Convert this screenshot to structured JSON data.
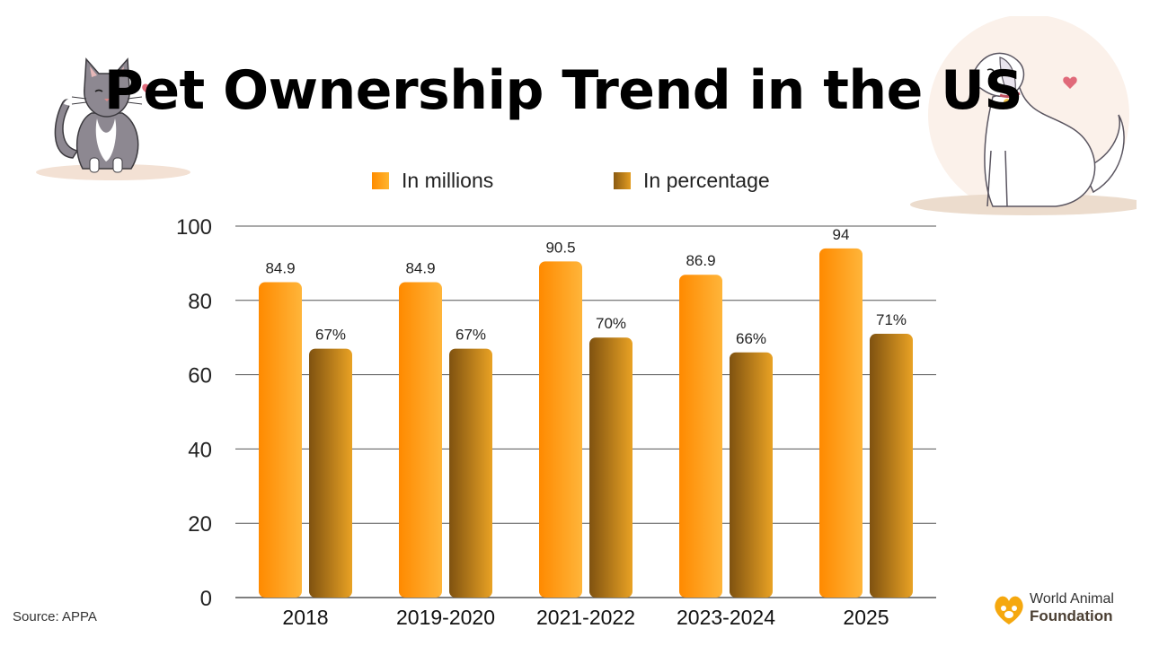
{
  "title": "Pet Ownership Trend in the US",
  "source": "Source: APPA",
  "brand": {
    "line1": "World Animal",
    "line2": "Foundation"
  },
  "colors": {
    "millions": "#ffa01c",
    "percentage": "#b87816",
    "grid": "#555555"
  },
  "chart_data": {
    "type": "bar",
    "title": "Pet Ownership Trend in the US",
    "categories": [
      "2018",
      "2019-2020",
      "2021-2022",
      "2023-2024",
      "2025"
    ],
    "series": [
      {
        "name": "In millions",
        "values": [
          84.9,
          84.9,
          90.5,
          86.9,
          94
        ],
        "labels": [
          "84.9",
          "84.9",
          "90.5",
          "86.9",
          "94"
        ]
      },
      {
        "name": "In percentage",
        "values": [
          67,
          67,
          70,
          66,
          71
        ],
        "labels": [
          "67%",
          "67%",
          "70%",
          "66%",
          "71%"
        ]
      }
    ],
    "y_ticks": [
      "0",
      "20",
      "40",
      "60",
      "80",
      "100"
    ],
    "ylim": [
      0,
      100
    ],
    "xlabel": "",
    "ylabel": "",
    "legend": "top-center"
  }
}
